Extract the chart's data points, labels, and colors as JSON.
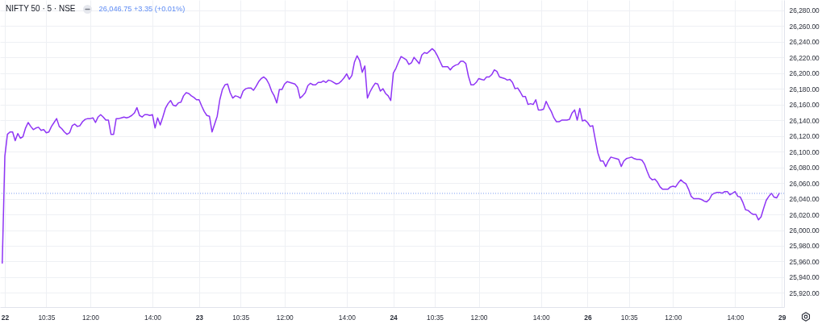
{
  "chart_data": {
    "type": "line",
    "title": "NIFTY 50 · 5 · NSE",
    "subtitle": "26,046.75 +3.35 (+0.01%)",
    "color": "#8f35f5",
    "categories": [
      null,
      "22",
      null,
      null,
      null,
      null,
      null,
      null,
      null,
      null,
      null,
      null,
      null,
      null,
      null,
      null,
      null,
      "10:35",
      null,
      null,
      null,
      null,
      null,
      null,
      null,
      null,
      null,
      null,
      null,
      null,
      null,
      null,
      null,
      null,
      "12:00",
      null,
      null,
      null,
      null,
      null,
      null,
      null,
      null,
      null,
      null,
      null,
      null,
      null,
      null,
      null,
      null,
      null,
      null,
      null,
      null,
      null,
      null,
      null,
      "14:00",
      null,
      null,
      null,
      null,
      null,
      null,
      null,
      null,
      null,
      null,
      null,
      null,
      null,
      null,
      null,
      null,
      null,
      "23",
      null,
      null,
      null,
      null,
      null,
      null,
      null,
      null,
      null,
      null,
      null,
      null,
      null,
      null,
      null,
      "10:35",
      null,
      null,
      null,
      null,
      null,
      null,
      null,
      null,
      null,
      null,
      null,
      null,
      null,
      null,
      null,
      null,
      "12:00",
      null,
      null,
      null,
      null,
      null,
      null,
      null,
      null,
      null,
      null,
      null,
      null,
      null,
      null,
      null,
      null,
      null,
      null,
      null,
      null,
      null,
      null,
      null,
      "14:00",
      null,
      null,
      null,
      null,
      null,
      null,
      null,
      null,
      null,
      null,
      null,
      null,
      null,
      null,
      null,
      null,
      null,
      "24",
      null,
      null,
      null,
      null,
      null,
      null,
      null,
      null,
      null,
      null,
      null,
      null,
      null,
      null,
      null,
      "10:35",
      null,
      null,
      null,
      null,
      null,
      null,
      null,
      null,
      null,
      null,
      null,
      null,
      null,
      null,
      null,
      null,
      "12:00",
      null,
      null,
      null,
      null,
      null,
      null,
      null,
      null,
      null,
      null,
      null,
      null,
      null,
      null,
      null,
      null,
      null,
      null,
      null,
      null,
      null,
      null,
      null,
      "14:00",
      null,
      null,
      null,
      null,
      null,
      null,
      null,
      null,
      null,
      null,
      null,
      null,
      null,
      null,
      null,
      null,
      null,
      "26",
      null,
      null,
      null,
      null,
      null,
      null,
      null,
      null,
      null,
      null,
      null,
      null,
      null,
      null,
      null,
      "10:35",
      null,
      null,
      null,
      null,
      null,
      null,
      null,
      null,
      null,
      null,
      null,
      null,
      null,
      null,
      null,
      null,
      "12:00",
      null,
      null,
      null,
      null,
      null,
      null,
      null,
      null,
      null,
      null,
      null,
      null,
      null,
      null,
      null,
      null,
      null,
      null,
      null,
      null,
      null,
      null,
      null,
      "14:00",
      null,
      null,
      null,
      null,
      null,
      null,
      null,
      null,
      null,
      null,
      null,
      null,
      null,
      null,
      null,
      null,
      null,
      "29"
    ],
    "values": [
      25958,
      26094,
      26122,
      26125,
      26125,
      26114,
      26123,
      26117,
      26119,
      26130,
      26137,
      26132,
      26128,
      26130,
      26131,
      26127,
      26128,
      26124,
      26125,
      26132,
      26137,
      26142,
      26132,
      26129,
      26125,
      26122,
      26124,
      26133,
      26135,
      26132,
      26133,
      26138,
      26141,
      26142,
      26142,
      26143,
      26137,
      26144,
      26147,
      26144,
      26140,
      26140,
      26122,
      26122,
      26142,
      26142,
      26143,
      26144,
      26143,
      26144,
      26146,
      26149,
      26156,
      26146,
      26144,
      26147,
      26147,
      26146,
      26147,
      26130,
      26143,
      26134,
      26144,
      26155,
      26161,
      26165,
      26159,
      26158,
      26162,
      26163,
      26171,
      26175,
      26174,
      26171,
      26169,
      26166,
      26166,
      26158,
      26151,
      26146,
      26145,
      26125,
      26135,
      26145,
      26166,
      26179,
      26185,
      26186,
      26175,
      26168,
      26171,
      26170,
      26168,
      26177,
      26180,
      26181,
      26181,
      26178,
      26183,
      26189,
      26193,
      26195,
      26192,
      26186,
      26177,
      26171,
      26162,
      26179,
      26179,
      26186,
      26189,
      26188,
      26187,
      26186,
      26182,
      26168,
      26171,
      26175,
      26184,
      26187,
      26185,
      26185,
      26188,
      26188,
      26190,
      26188,
      26191,
      26190,
      26188,
      26186,
      26187,
      26190,
      26194,
      26199,
      26192,
      26197,
      26214,
      26222,
      26216,
      26201,
      26209,
      26168,
      26176,
      26182,
      26187,
      26186,
      26177,
      26180,
      26174,
      26171,
      26165,
      26200,
      26206,
      26214,
      26221,
      26219,
      26217,
      26211,
      26213,
      26220,
      26216,
      26212,
      26223,
      26226,
      26225,
      26228,
      26231,
      26228,
      26222,
      26215,
      26208,
      26208,
      26208,
      26204,
      26208,
      26210,
      26211,
      26215,
      26215,
      26212,
      26196,
      26185,
      26185,
      26188,
      26193,
      26192,
      26191,
      26195,
      26195,
      26198,
      26204,
      26202,
      26195,
      26194,
      26193,
      26191,
      26192,
      26188,
      26180,
      26181,
      26176,
      26170,
      26170,
      26160,
      26161,
      26160,
      26166,
      26153,
      26153,
      26154,
      26164,
      26157,
      26151,
      26143,
      26138,
      26138,
      26140,
      26140,
      26140,
      26141,
      26149,
      26153,
      26140,
      26155,
      26139,
      26140,
      26137,
      26132,
      26133,
      26115,
      26098,
      26088,
      26088,
      26081,
      26088,
      26093,
      26092,
      26091,
      26090,
      26081,
      26088,
      26091,
      26092,
      26093,
      26091,
      26090,
      26090,
      26089,
      26084,
      26075,
      26067,
      26064,
      26065,
      26061,
      26055,
      26052,
      26052,
      26052,
      26055,
      26056,
      26055,
      26060,
      26064,
      26061,
      26059,
      26052,
      26043,
      26040,
      26040,
      26040,
      26039,
      26037,
      26036,
      26039,
      26045,
      26047,
      26048,
      26048,
      26047,
      26049,
      26049,
      26045,
      26047,
      26049,
      26043,
      26042,
      26035,
      26026,
      26025,
      26022,
      26020,
      26020,
      26013,
      26017,
      26028,
      26038,
      26043,
      26047,
      26042,
      26041,
      26046.75,
      null
    ],
    "ylim": [
      25902,
      26293
    ],
    "yticks": [
      {
        "value": 25920,
        "label": "25,920.00"
      },
      {
        "value": 25940,
        "label": "25,940.00"
      },
      {
        "value": 25960,
        "label": "25,960.00"
      },
      {
        "value": 25980,
        "label": "25,980.00"
      },
      {
        "value": 26000,
        "label": "26,000.00"
      },
      {
        "value": 26020,
        "label": "26,020.00"
      },
      {
        "value": 26040,
        "label": "26,040.00"
      },
      {
        "value": 26060,
        "label": "26,060.00"
      },
      {
        "value": 26080,
        "label": "26,080.00"
      },
      {
        "value": 26100,
        "label": "26,100.00"
      },
      {
        "value": 26120,
        "label": "26,120.00"
      },
      {
        "value": 26140,
        "label": "26,140.00"
      },
      {
        "value": 26160,
        "label": "26,160.00"
      },
      {
        "value": 26180,
        "label": "26,180.00"
      },
      {
        "value": 26200,
        "label": "26,200.00"
      },
      {
        "value": 26220,
        "label": "26,220.00"
      },
      {
        "value": 26240,
        "label": "26,240.00"
      },
      {
        "value": 26260,
        "label": "26,260.00"
      },
      {
        "value": 26280,
        "label": "26,280.00"
      }
    ],
    "ref_lines": [
      {
        "axis": "y",
        "value": 26046.75,
        "color": "#7b9cf0",
        "line_style": "dotted"
      }
    ],
    "grid": true
  }
}
